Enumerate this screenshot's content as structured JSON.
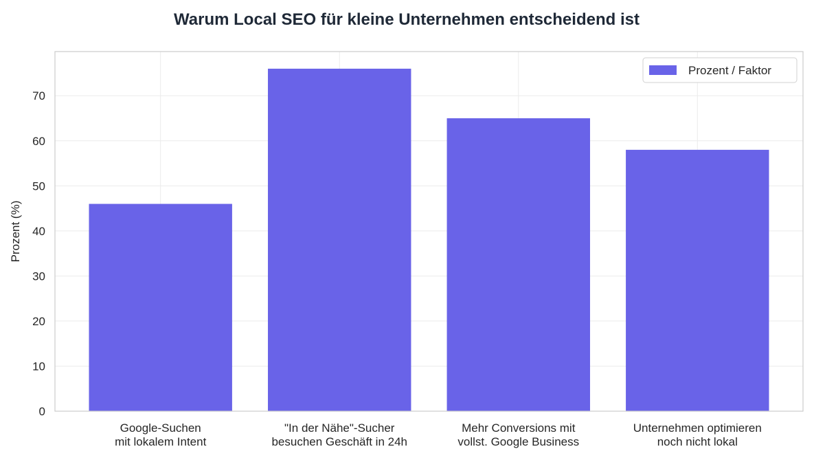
{
  "chart_data": {
    "type": "bar",
    "title": "Warum Local SEO für kleine Unternehmen entscheidend ist",
    "xlabel": "",
    "ylabel": "Prozent (%)",
    "categories": [
      [
        "Google-Suchen",
        "mit lokalem Intent"
      ],
      [
        "\"In der Nähe\"-Sucher",
        "besuchen Geschäft in 24h"
      ],
      [
        "Mehr Conversions mit",
        "vollst. Google Business"
      ],
      [
        "Unternehmen optimieren",
        "noch nicht lokal"
      ]
    ],
    "series": [
      {
        "name": "Prozent / Faktor",
        "values": [
          46,
          76,
          65,
          58
        ],
        "color": "#6963e8"
      }
    ],
    "ylim": [
      0,
      79.8
    ],
    "yticks": [
      0,
      10,
      20,
      30,
      40,
      50,
      60,
      70
    ],
    "grid": true,
    "legend": "top-right"
  }
}
